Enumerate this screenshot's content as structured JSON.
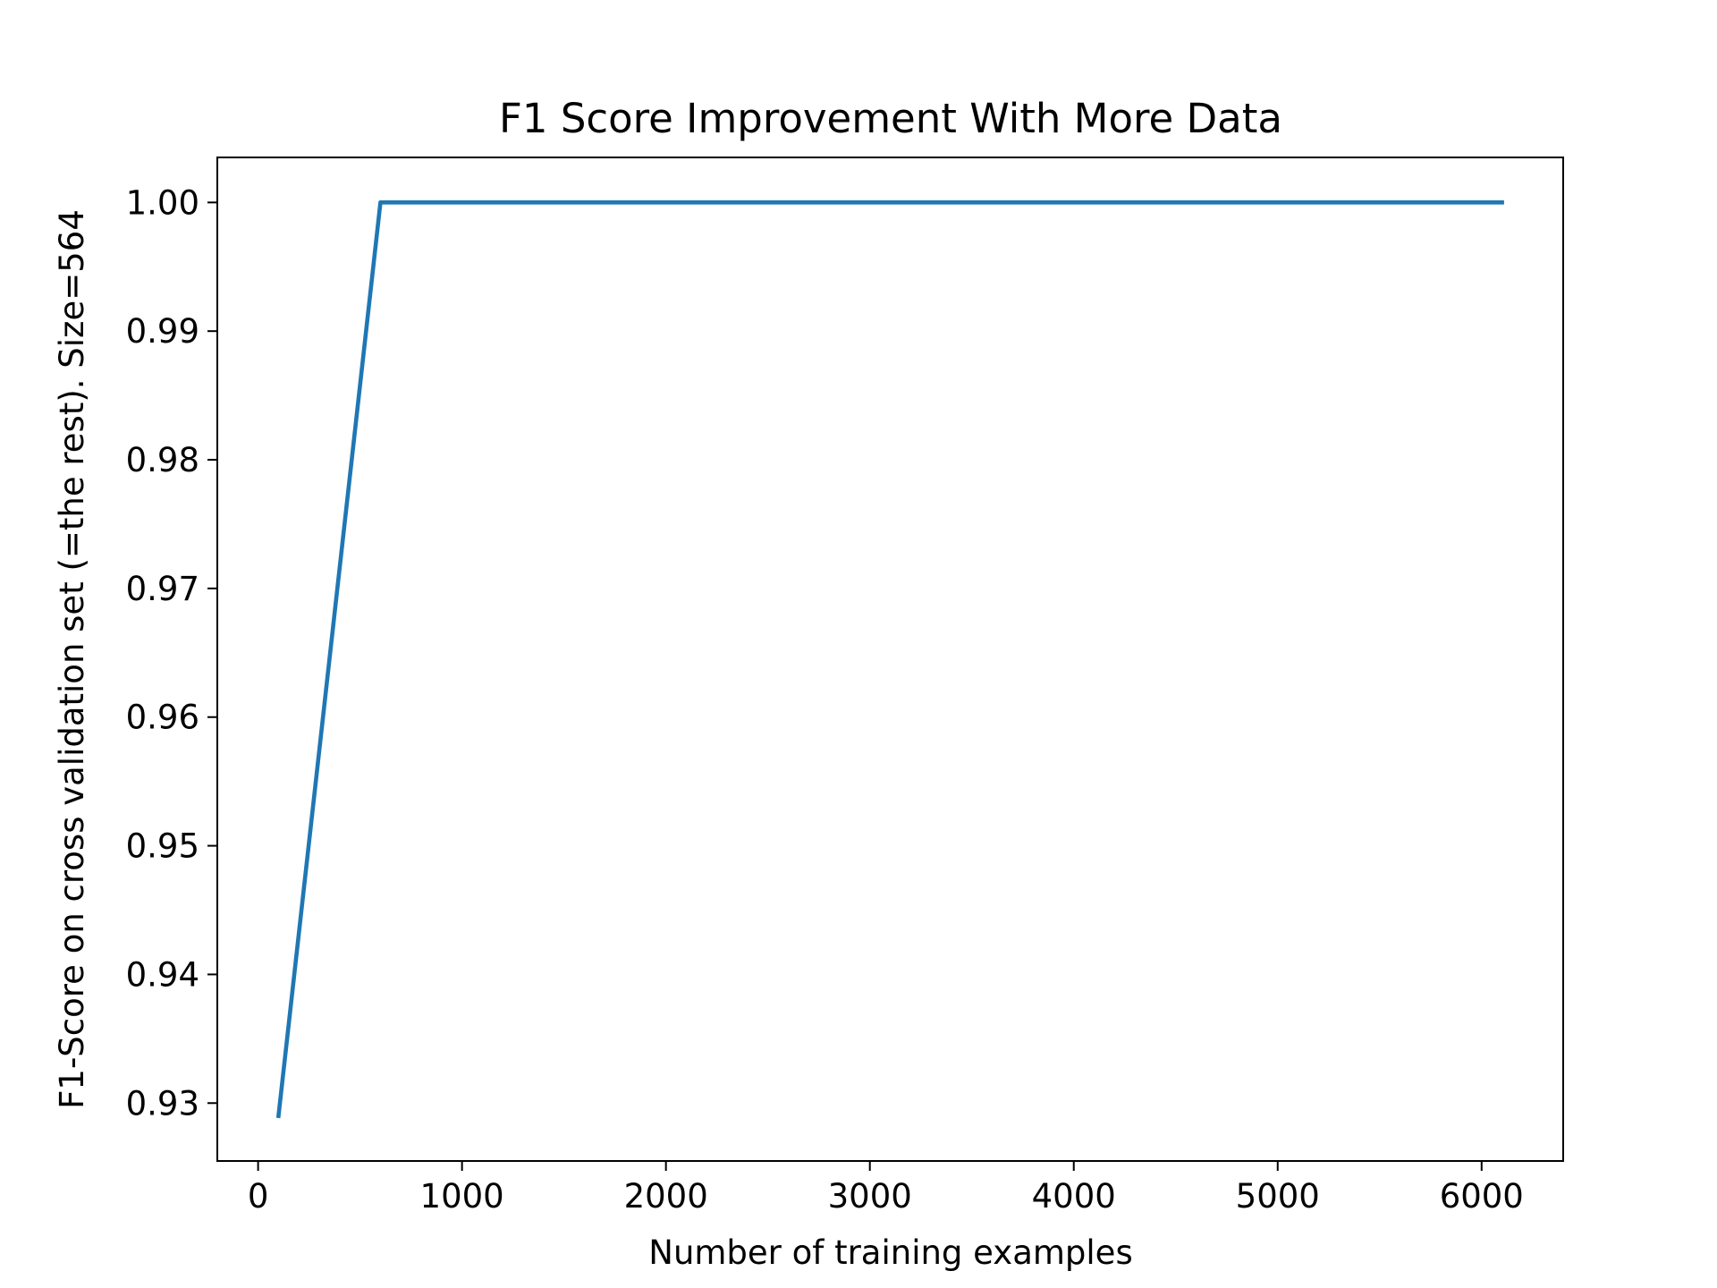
{
  "chart_data": {
    "type": "line",
    "title": "F1 Score Improvement With More Data",
    "xlabel": "Number of training examples",
    "ylabel": "F1-Score on cross validation set (=the rest). Size=564",
    "xlim": [
      -200,
      6400
    ],
    "ylim": [
      0.9255,
      1.0035
    ],
    "xticks": [
      0,
      1000,
      2000,
      3000,
      4000,
      5000,
      6000
    ],
    "xtick_labels": [
      "0",
      "1000",
      "2000",
      "3000",
      "4000",
      "5000",
      "6000"
    ],
    "yticks": [
      0.93,
      0.94,
      0.95,
      0.96,
      0.97,
      0.98,
      0.99,
      1.0
    ],
    "ytick_labels": [
      "0.93",
      "0.94",
      "0.95",
      "0.96",
      "0.97",
      "0.98",
      "0.99",
      "1.00"
    ],
    "grid": false,
    "series": [
      {
        "color": "#1f77b4",
        "x": [
          100,
          600,
          1100,
          1600,
          2100,
          2600,
          3100,
          3600,
          4100,
          4600,
          5100,
          5600,
          6100
        ],
        "y": [
          0.929,
          1.0,
          1.0,
          1.0,
          1.0,
          1.0,
          1.0,
          1.0,
          1.0,
          1.0,
          1.0,
          1.0,
          1.0
        ]
      }
    ]
  }
}
